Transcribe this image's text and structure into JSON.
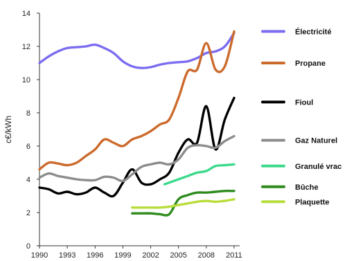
{
  "chart_data": {
    "type": "line",
    "title": "",
    "xlabel": "",
    "ylabel": "c€/kWh",
    "xlim": [
      1990,
      2011.6
    ],
    "ylim": [
      0,
      14
    ],
    "x_ticks": [
      1990,
      1993,
      1996,
      1999,
      2002,
      2005,
      2008,
      2011
    ],
    "y_ticks": [
      0,
      2,
      4,
      6,
      8,
      10,
      12,
      14
    ],
    "grid": "none",
    "legend_position": "right",
    "series": [
      {
        "name": "Électricité",
        "color": "#7b6cf0",
        "points": [
          [
            1990,
            11.0
          ],
          [
            1991,
            11.4
          ],
          [
            1992,
            11.7
          ],
          [
            1993,
            11.9
          ],
          [
            1994,
            11.95
          ],
          [
            1995,
            12.0
          ],
          [
            1996,
            12.1
          ],
          [
            1997,
            11.9
          ],
          [
            1998,
            11.6
          ],
          [
            1999,
            11.1
          ],
          [
            2000,
            10.8
          ],
          [
            2001,
            10.7
          ],
          [
            2002,
            10.75
          ],
          [
            2003,
            10.9
          ],
          [
            2004,
            11.0
          ],
          [
            2005,
            11.05
          ],
          [
            2006,
            11.1
          ],
          [
            2007,
            11.3
          ],
          [
            2008,
            11.6
          ],
          [
            2009,
            11.7
          ],
          [
            2010,
            12.0
          ],
          [
            2011,
            12.8
          ]
        ]
      },
      {
        "name": "Propane",
        "color": "#cc6a2c",
        "points": [
          [
            1990,
            4.6
          ],
          [
            1991,
            5.0
          ],
          [
            1992,
            4.95
          ],
          [
            1993,
            4.85
          ],
          [
            1994,
            5.0
          ],
          [
            1995,
            5.4
          ],
          [
            1996,
            5.8
          ],
          [
            1997,
            6.4
          ],
          [
            1998,
            6.2
          ],
          [
            1999,
            6.0
          ],
          [
            2000,
            6.4
          ],
          [
            2001,
            6.6
          ],
          [
            2002,
            6.9
          ],
          [
            2003,
            7.3
          ],
          [
            2004,
            7.6
          ],
          [
            2005,
            8.9
          ],
          [
            2006,
            10.5
          ],
          [
            2007,
            10.6
          ],
          [
            2008,
            12.2
          ],
          [
            2009,
            10.6
          ],
          [
            2010,
            10.8
          ],
          [
            2011,
            12.9
          ]
        ]
      },
      {
        "name": "Fioul",
        "color": "#000000",
        "points": [
          [
            1990,
            3.5
          ],
          [
            1991,
            3.4
          ],
          [
            1992,
            3.15
          ],
          [
            1993,
            3.25
          ],
          [
            1994,
            3.1
          ],
          [
            1995,
            3.2
          ],
          [
            1996,
            3.5
          ],
          [
            1997,
            3.2
          ],
          [
            1998,
            3.0
          ],
          [
            1999,
            3.8
          ],
          [
            2000,
            4.6
          ],
          [
            2001,
            3.8
          ],
          [
            2002,
            3.7
          ],
          [
            2003,
            4.0
          ],
          [
            2004,
            4.4
          ],
          [
            2005,
            5.6
          ],
          [
            2006,
            6.4
          ],
          [
            2007,
            6.2
          ],
          [
            2008,
            8.4
          ],
          [
            2009,
            5.8
          ],
          [
            2010,
            7.6
          ],
          [
            2011,
            8.9
          ]
        ]
      },
      {
        "name": "Gaz Naturel",
        "color": "#8c8c8c",
        "points": [
          [
            1990,
            4.1
          ],
          [
            1991,
            4.35
          ],
          [
            1992,
            4.2
          ],
          [
            1993,
            4.1
          ],
          [
            1994,
            4.0
          ],
          [
            1995,
            3.95
          ],
          [
            1996,
            3.95
          ],
          [
            1997,
            4.15
          ],
          [
            1998,
            4.1
          ],
          [
            1999,
            3.9
          ],
          [
            2000,
            4.3
          ],
          [
            2001,
            4.75
          ],
          [
            2002,
            4.9
          ],
          [
            2003,
            5.0
          ],
          [
            2004,
            4.9
          ],
          [
            2005,
            5.2
          ],
          [
            2006,
            5.9
          ],
          [
            2007,
            6.05
          ],
          [
            2008,
            6.0
          ],
          [
            2009,
            5.9
          ],
          [
            2010,
            6.3
          ],
          [
            2011,
            6.6
          ]
        ]
      },
      {
        "name": "Granulé vrac",
        "color": "#3dd98c",
        "points": [
          [
            2003.5,
            3.7
          ],
          [
            2004,
            3.8
          ],
          [
            2005,
            4.0
          ],
          [
            2006,
            4.2
          ],
          [
            2007,
            4.4
          ],
          [
            2008,
            4.5
          ],
          [
            2009,
            4.8
          ],
          [
            2010,
            4.85
          ],
          [
            2011,
            4.9
          ]
        ]
      },
      {
        "name": "Bûche",
        "color": "#2e8b1e",
        "points": [
          [
            2000,
            1.95
          ],
          [
            2001,
            1.95
          ],
          [
            2002,
            1.95
          ],
          [
            2003,
            1.9
          ],
          [
            2004,
            1.9
          ],
          [
            2005,
            2.8
          ],
          [
            2006,
            3.05
          ],
          [
            2007,
            3.2
          ],
          [
            2008,
            3.2
          ],
          [
            2009,
            3.25
          ],
          [
            2010,
            3.3
          ],
          [
            2011,
            3.3
          ]
        ]
      },
      {
        "name": "Plaquette",
        "color": "#b8dd3a",
        "points": [
          [
            2000,
            2.3
          ],
          [
            2001,
            2.3
          ],
          [
            2002,
            2.3
          ],
          [
            2003,
            2.3
          ],
          [
            2004,
            2.35
          ],
          [
            2005,
            2.45
          ],
          [
            2006,
            2.55
          ],
          [
            2007,
            2.65
          ],
          [
            2008,
            2.7
          ],
          [
            2009,
            2.65
          ],
          [
            2010,
            2.7
          ],
          [
            2011,
            2.8
          ]
        ]
      }
    ],
    "legend": [
      {
        "label": "Électricité",
        "y": 12.9
      },
      {
        "label": "Propane",
        "y": 11.0
      },
      {
        "label": "Fioul",
        "y": 8.65
      },
      {
        "label": "Gaz Naturel",
        "y": 6.35
      },
      {
        "label": "Granulé vrac",
        "y": 4.8
      },
      {
        "label": "Bûche",
        "y": 3.55
      },
      {
        "label": "Plaquette",
        "y": 2.65
      }
    ]
  }
}
